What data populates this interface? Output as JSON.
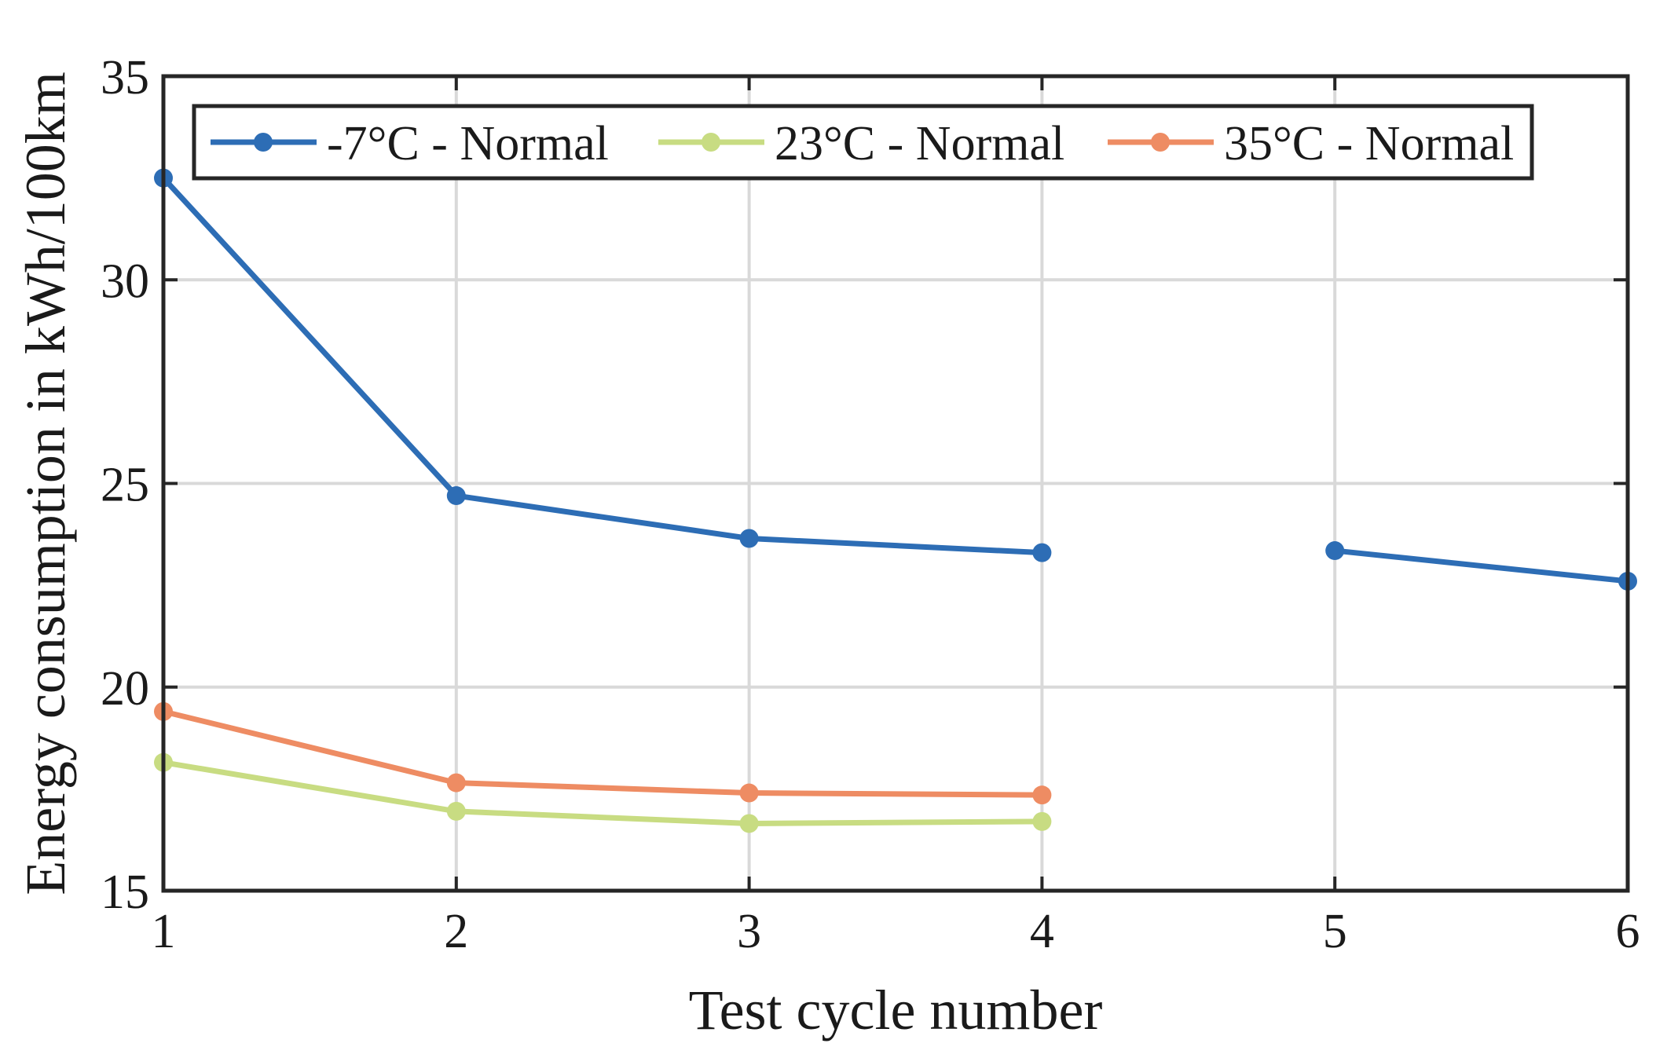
{
  "chart_data": {
    "type": "line",
    "title": "",
    "xlabel": "Test cycle number",
    "ylabel": "Energy consumption in kWh/100km",
    "xlim": [
      1,
      6
    ],
    "ylim": [
      15,
      35
    ],
    "xticks": [
      1,
      2,
      3,
      4,
      5,
      6
    ],
    "yticks": [
      15,
      20,
      25,
      30,
      35
    ],
    "grid": true,
    "legend_position": "top",
    "series": [
      {
        "name": "-7°C - Normal",
        "color": "#2d6db5",
        "x": [
          1,
          2,
          3,
          4,
          null,
          5,
          6
        ],
        "values": [
          32.5,
          24.7,
          23.65,
          23.3,
          null,
          23.35,
          22.6
        ]
      },
      {
        "name": "23°C - Normal",
        "color": "#c8dc82",
        "x": [
          1,
          2,
          3,
          4
        ],
        "values": [
          18.15,
          16.95,
          16.65,
          16.7
        ]
      },
      {
        "name": "35°C - Normal",
        "color": "#ee8c63",
        "x": [
          1,
          2,
          3,
          4
        ],
        "values": [
          19.4,
          17.65,
          17.4,
          17.35
        ]
      }
    ]
  }
}
